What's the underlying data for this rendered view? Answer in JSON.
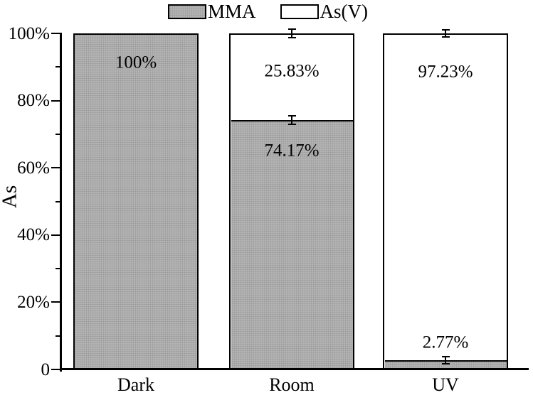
{
  "chart_data": {
    "type": "bar",
    "variant": "stacked",
    "title": "",
    "xlabel": "",
    "ylabel": "As",
    "categories": [
      "Dark",
      "Room",
      "UV"
    ],
    "series": [
      {
        "name": "MMA",
        "fill": "#b9b9b9",
        "texture": "stipple",
        "values": [
          100,
          74.17,
          2.77
        ],
        "errors": [
          null,
          1.2,
          1.0
        ]
      },
      {
        "name": "As(V)",
        "fill": "#ffffff",
        "texture": "plain",
        "values": [
          0,
          25.83,
          97.23
        ],
        "errors": [
          null,
          1.2,
          1.0
        ]
      }
    ],
    "value_labels": [
      {
        "category": "Dark",
        "text": "100%",
        "y_pct": 91.3
      },
      {
        "category": "Room",
        "text": "25.83%",
        "y_pct": 88.8
      },
      {
        "category": "Room",
        "text": "74.17%",
        "y_pct": 65.1
      },
      {
        "category": "UV",
        "text": "97.23%",
        "y_pct": 88.6
      },
      {
        "category": "UV",
        "text": "2.77%",
        "y_pct": 8.0
      }
    ],
    "y_axis": {
      "min": 0,
      "max": 100,
      "major_ticks": [
        {
          "value": 0,
          "label": "0"
        },
        {
          "value": 20,
          "label": "20%"
        },
        {
          "value": 40,
          "label": "40%"
        },
        {
          "value": 60,
          "label": "60%"
        },
        {
          "value": 80,
          "label": "80%"
        },
        {
          "value": 100,
          "label": "100%"
        }
      ],
      "minor_ticks": [
        10,
        30,
        50,
        70,
        90
      ]
    },
    "legend": {
      "position": "top-center",
      "items": [
        {
          "label": "MMA",
          "fill": "#b9b9b9",
          "texture": "stipple"
        },
        {
          "label": "As(V)",
          "fill": "#ffffff",
          "texture": "plain"
        }
      ]
    },
    "grid": false,
    "colors": {
      "axis": "#000000",
      "text": "#000000",
      "background": "#ffffff"
    }
  }
}
